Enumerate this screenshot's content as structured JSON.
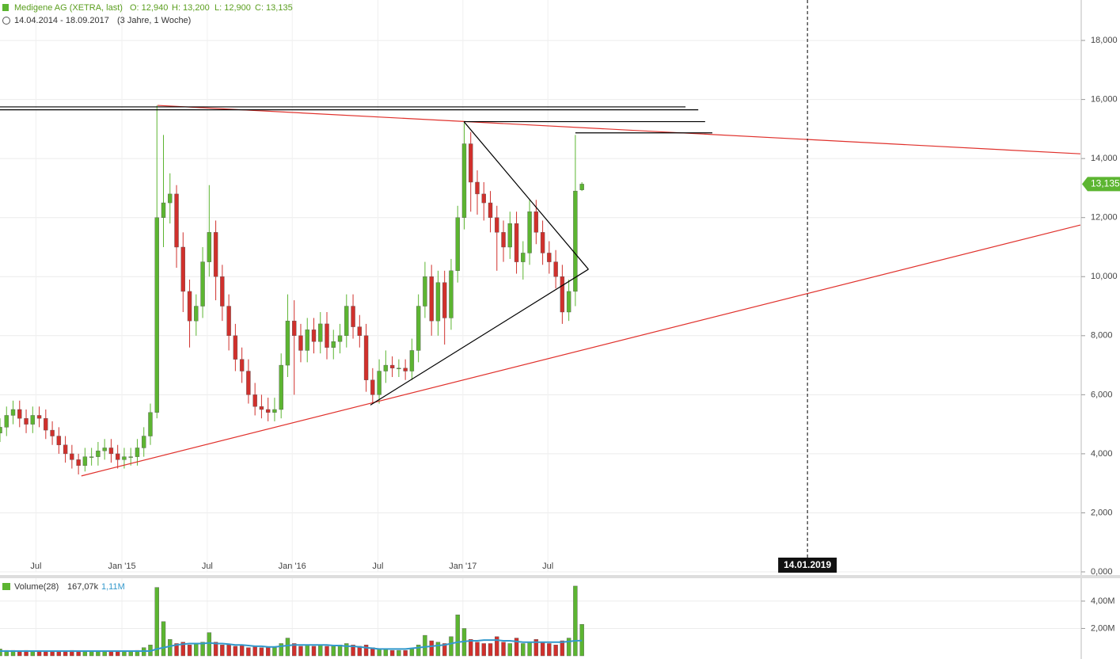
{
  "chart_data": [
    {
      "type": "candlestick",
      "title": "Medigene AG (XETRA, last)",
      "ohlc_labels": [
        "O: 12,940",
        "H: 13,200",
        "L: 12,900",
        "C: 13,135"
      ],
      "subtitle": "14.04.2014 - 18.09.2017",
      "period": "(3 Jahre, 1 Woche)",
      "up_color": "#5cb531",
      "down_color": "#d0302c",
      "x": [
        0,
        2,
        4,
        6,
        8,
        10,
        12,
        14,
        16,
        18,
        20,
        22,
        24,
        26,
        28,
        30,
        32,
        34,
        36,
        38,
        40,
        42,
        44,
        46,
        48,
        50,
        52,
        54,
        56,
        58,
        60,
        62,
        64,
        66,
        68,
        70,
        72,
        74,
        76,
        78,
        80,
        82,
        84,
        86,
        88,
        90,
        92,
        94,
        96,
        98,
        100,
        102,
        104,
        106,
        108,
        110,
        112,
        114,
        116,
        118,
        120,
        122,
        124,
        126,
        128,
        130,
        132,
        134,
        136,
        138,
        140,
        142,
        144,
        146,
        148,
        150,
        152,
        154,
        156,
        158,
        160,
        162,
        164,
        166,
        168,
        170,
        172,
        174,
        176,
        178
      ],
      "open": [
        4.7,
        4.9,
        5.3,
        5.5,
        5.2,
        5.0,
        5.3,
        5.2,
        4.8,
        4.6,
        4.3,
        4.0,
        3.8,
        3.6,
        3.9,
        3.9,
        4.1,
        4.2,
        4.0,
        3.8,
        3.9,
        3.9,
        4.2,
        4.6,
        5.4,
        12.0,
        12.5,
        12.8,
        11.0,
        9.5,
        8.5,
        9.0,
        10.5,
        11.5,
        10.0,
        9.0,
        8.0,
        7.2,
        6.8,
        6.0,
        5.6,
        5.5,
        5.4,
        5.5,
        7.0,
        8.5,
        8.0,
        7.5,
        8.2,
        7.8,
        8.4,
        7.6,
        7.8,
        8.0,
        9.0,
        8.3,
        8.0,
        6.5,
        6.0,
        6.8,
        7.0,
        6.9,
        6.9,
        6.8,
        7.5,
        9.0,
        10.0,
        8.5,
        9.8,
        8.6,
        10.2,
        12.0,
        14.5,
        13.2,
        12.8,
        12.5,
        12.0,
        11.5,
        11.0,
        11.8,
        10.5,
        10.8,
        12.2,
        11.5,
        10.8,
        10.5,
        10.0,
        8.8,
        9.5,
        12.94
      ],
      "high": [
        5.2,
        5.6,
        5.8,
        5.8,
        5.5,
        5.6,
        5.6,
        5.5,
        5.1,
        4.9,
        4.6,
        4.3,
        4.0,
        4.2,
        4.2,
        4.4,
        4.5,
        4.5,
        4.3,
        4.2,
        4.2,
        4.5,
        4.9,
        5.7,
        15.8,
        14.8,
        13.5,
        13.1,
        11.5,
        9.9,
        9.4,
        11.0,
        13.1,
        11.9,
        10.4,
        9.4,
        8.4,
        7.6,
        7.2,
        6.4,
        6.0,
        5.9,
        5.9,
        7.4,
        9.4,
        9.2,
        8.4,
        8.6,
        8.6,
        8.8,
        8.8,
        8.2,
        8.4,
        9.4,
        9.4,
        8.7,
        8.4,
        6.9,
        7.2,
        7.5,
        7.3,
        7.2,
        7.2,
        7.9,
        9.4,
        10.5,
        10.4,
        10.2,
        10.2,
        10.6,
        12.4,
        15.2,
        14.9,
        13.6,
        13.2,
        12.9,
        12.4,
        11.9,
        12.2,
        12.2,
        11.2,
        12.6,
        12.6,
        11.9,
        11.2,
        10.9,
        10.4,
        9.9,
        14.8,
        13.2
      ],
      "low": [
        4.4,
        4.6,
        5.0,
        4.9,
        4.7,
        4.7,
        4.9,
        4.5,
        4.3,
        4.0,
        3.7,
        3.5,
        3.3,
        3.4,
        3.6,
        3.6,
        3.8,
        3.7,
        3.5,
        3.5,
        3.6,
        3.6,
        3.9,
        4.3,
        5.2,
        11.0,
        11.8,
        10.3,
        8.8,
        7.6,
        8.0,
        8.6,
        10.0,
        9.2,
        8.5,
        7.5,
        6.8,
        6.4,
        5.7,
        5.3,
        5.2,
        5.1,
        5.1,
        5.2,
        6.6,
        6.0,
        7.1,
        7.1,
        7.4,
        7.4,
        7.2,
        7.2,
        7.4,
        7.6,
        7.9,
        7.6,
        6.1,
        5.7,
        5.7,
        6.4,
        6.6,
        6.6,
        6.5,
        6.5,
        7.1,
        8.6,
        8.0,
        8.0,
        7.7,
        8.2,
        9.8,
        11.6,
        12.2,
        12.1,
        11.9,
        11.5,
        10.2,
        10.5,
        10.6,
        10.1,
        9.9,
        10.4,
        11.1,
        10.4,
        10.1,
        9.6,
        8.4,
        8.5,
        9.0,
        12.9
      ],
      "close": [
        4.9,
        5.3,
        5.5,
        5.2,
        5.0,
        5.3,
        5.2,
        4.8,
        4.6,
        4.3,
        4.0,
        3.8,
        3.6,
        3.9,
        3.9,
        4.1,
        4.2,
        4.0,
        3.8,
        3.9,
        3.9,
        4.2,
        4.6,
        5.4,
        12.0,
        12.5,
        12.8,
        11.0,
        9.5,
        8.5,
        9.0,
        10.5,
        11.5,
        10.0,
        9.0,
        8.0,
        7.2,
        6.8,
        6.0,
        5.6,
        5.5,
        5.4,
        5.5,
        7.0,
        8.5,
        8.0,
        7.5,
        8.2,
        7.8,
        8.4,
        7.6,
        7.8,
        8.0,
        9.0,
        8.3,
        8.0,
        6.5,
        6.0,
        6.8,
        7.0,
        6.9,
        6.9,
        6.8,
        7.5,
        9.0,
        10.0,
        8.5,
        9.8,
        8.6,
        10.2,
        12.0,
        14.5,
        13.2,
        12.8,
        12.5,
        12.0,
        11.5,
        11.0,
        11.8,
        10.5,
        10.8,
        12.2,
        11.5,
        10.8,
        10.5,
        10.0,
        8.8,
        9.5,
        12.9,
        13.135
      ],
      "xlim": [
        0,
        330.5
      ],
      "ylim": [
        0,
        19.37
      ],
      "xticks": [
        {
          "value": 11,
          "label": "Jul"
        },
        {
          "value": 37.3,
          "label": "Jan '15"
        },
        {
          "value": 63.4,
          "label": "Jul"
        },
        {
          "value": 89.4,
          "label": "Jan '16"
        },
        {
          "value": 115.6,
          "label": "Jul"
        },
        {
          "value": 141.6,
          "label": "Jan '17"
        },
        {
          "value": 167.6,
          "label": "Jul"
        }
      ],
      "yticks": [
        {
          "value": 0,
          "label": "0,000"
        },
        {
          "value": 2,
          "label": "2,000"
        },
        {
          "value": 4,
          "label": "4,000"
        },
        {
          "value": 6,
          "label": "6,000"
        },
        {
          "value": 8,
          "label": "8,000"
        },
        {
          "value": 10,
          "label": "10,000"
        },
        {
          "value": 12,
          "label": "12,000"
        },
        {
          "value": 14,
          "label": "14,000"
        },
        {
          "value": 16,
          "label": "16,000"
        },
        {
          "value": 18,
          "label": "18,000"
        }
      ],
      "grid": true,
      "marker": {
        "value": 247,
        "label": "14.01.2019"
      },
      "last_price": {
        "value": 13.135,
        "label": "13,135"
      },
      "trendlines": [
        {
          "color": "#e0312c",
          "x": [
            24.9,
            330.5
          ],
          "y": [
            3.25,
            11.75
          ]
        },
        {
          "color": "#e0312c",
          "x": [
            48.2,
            330.5
          ],
          "y": [
            15.8,
            14.16
          ]
        },
        {
          "color": "#000000",
          "x": [
            113.3,
            180
          ],
          "y": [
            5.65,
            10.25
          ]
        },
        {
          "color": "#000000",
          "x": [
            141.9,
            180
          ],
          "y": [
            15.25,
            10.25
          ]
        },
        {
          "color": "#000000",
          "x": [
            0,
            209.7
          ],
          "y": [
            15.75,
            15.75
          ]
        },
        {
          "color": "#000000",
          "x": [
            0,
            213.6
          ],
          "y": [
            15.65,
            15.65
          ]
        },
        {
          "color": "#000000",
          "x": [
            141.9,
            215.7
          ],
          "y": [
            15.25,
            15.25
          ]
        },
        {
          "color": "#000000",
          "x": [
            176,
            217.9
          ],
          "y": [
            14.87,
            14.87
          ]
        }
      ]
    },
    {
      "type": "bar",
      "title": "Volume(28)",
      "legend_values": [
        "167,07k",
        "1,11M"
      ],
      "values": [
        0.5,
        0.4,
        0.4,
        0.3,
        0.4,
        0.3,
        0.3,
        0.3,
        0.3,
        0.3,
        0.3,
        0.4,
        0.3,
        0.3,
        0.3,
        0.3,
        0.3,
        0.3,
        0.3,
        0.3,
        0.3,
        0.4,
        0.6,
        0.8,
        5.0,
        2.5,
        1.2,
        0.9,
        1.0,
        0.8,
        0.9,
        1.0,
        1.7,
        1.0,
        0.8,
        0.8,
        0.7,
        0.8,
        0.6,
        0.7,
        0.6,
        0.6,
        0.6,
        0.9,
        1.3,
        0.9,
        0.7,
        0.8,
        0.7,
        0.8,
        0.7,
        0.7,
        0.8,
        0.9,
        0.8,
        0.7,
        0.8,
        0.6,
        0.5,
        0.5,
        0.4,
        0.4,
        0.4,
        0.5,
        0.8,
        1.5,
        1.1,
        1.0,
        0.9,
        1.4,
        3.0,
        2.0,
        1.2,
        1.0,
        0.9,
        0.9,
        1.4,
        1.0,
        0.9,
        1.3,
        0.9,
        1.0,
        1.2,
        1.0,
        0.9,
        0.8,
        1.1,
        1.3,
        5.1,
        2.3
      ],
      "ma_color": "#3399cc",
      "ma": [
        0.35,
        0.35,
        0.35,
        0.35,
        0.35,
        0.35,
        0.35,
        0.35,
        0.35,
        0.35,
        0.35,
        0.35,
        0.35,
        0.35,
        0.35,
        0.35,
        0.35,
        0.35,
        0.35,
        0.35,
        0.35,
        0.35,
        0.35,
        0.35,
        0.5,
        0.6,
        0.7,
        0.8,
        0.85,
        0.9,
        0.9,
        0.9,
        0.95,
        0.9,
        0.9,
        0.85,
        0.8,
        0.8,
        0.75,
        0.7,
        0.7,
        0.65,
        0.65,
        0.7,
        0.75,
        0.8,
        0.8,
        0.8,
        0.8,
        0.8,
        0.8,
        0.75,
        0.75,
        0.7,
        0.7,
        0.65,
        0.6,
        0.55,
        0.5,
        0.5,
        0.5,
        0.5,
        0.5,
        0.55,
        0.6,
        0.65,
        0.7,
        0.75,
        0.8,
        0.9,
        1.0,
        1.05,
        1.1,
        1.1,
        1.15,
        1.15,
        1.15,
        1.1,
        1.1,
        1.05,
        1.0,
        1.0,
        1.0,
        1.0,
        1.0,
        1.0,
        1.0,
        1.05,
        1.1,
        1.11
      ],
      "ylim": [
        0,
        5.5
      ],
      "yticks": [
        {
          "value": 2,
          "label": "2,00M"
        },
        {
          "value": 4,
          "label": "4,00M"
        }
      ]
    }
  ]
}
